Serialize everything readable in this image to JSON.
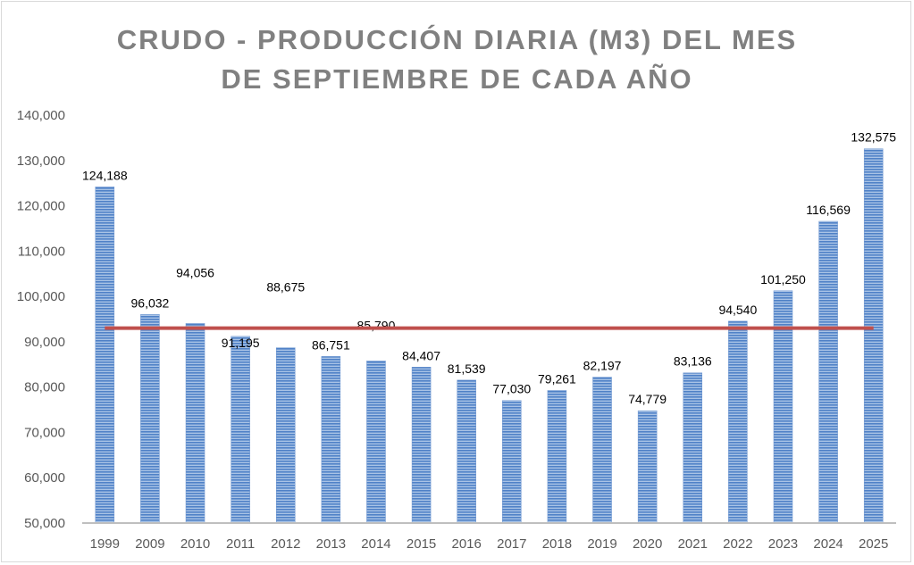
{
  "chart_data": {
    "type": "bar",
    "title_lines": [
      "CRUDO - PRODUCCIÓN DIARIA (M3) DEL MES",
      "DE SEPTIEMBRE DE CADA AÑO"
    ],
    "categories": [
      "1999",
      "2009",
      "2010",
      "2011",
      "2012",
      "2013",
      "2014",
      "2015",
      "2016",
      "2017",
      "2018",
      "2019",
      "2020",
      "2021",
      "2022",
      "2023",
      "2024",
      "2025"
    ],
    "values": [
      124188,
      96032,
      94056,
      91195,
      88675,
      86751,
      85790,
      84407,
      81539,
      77030,
      79261,
      82197,
      74779,
      83136,
      94540,
      101250,
      116569,
      132575
    ],
    "data_labels": [
      "124,188",
      "96,032",
      "94,056",
      "91,195",
      "88,675",
      "86,751",
      "85,790",
      "84,407",
      "81,539",
      "77,030",
      "79,261",
      "82,197",
      "74,779",
      "83,136",
      "94,540",
      "101,250",
      "116,569",
      "132,575"
    ],
    "reference_line": {
      "name": "average",
      "value": 92998,
      "color": "#c0504d"
    },
    "yticks": [
      "50,000",
      "60,000",
      "70,000",
      "80,000",
      "90,000",
      "100,000",
      "110,000",
      "120,000",
      "130,000",
      "140,000"
    ],
    "ylim": [
      50000,
      140000
    ],
    "xlabel": "",
    "ylabel": "",
    "bar_color": "#4f81bd",
    "grid": false,
    "legend": "none"
  }
}
